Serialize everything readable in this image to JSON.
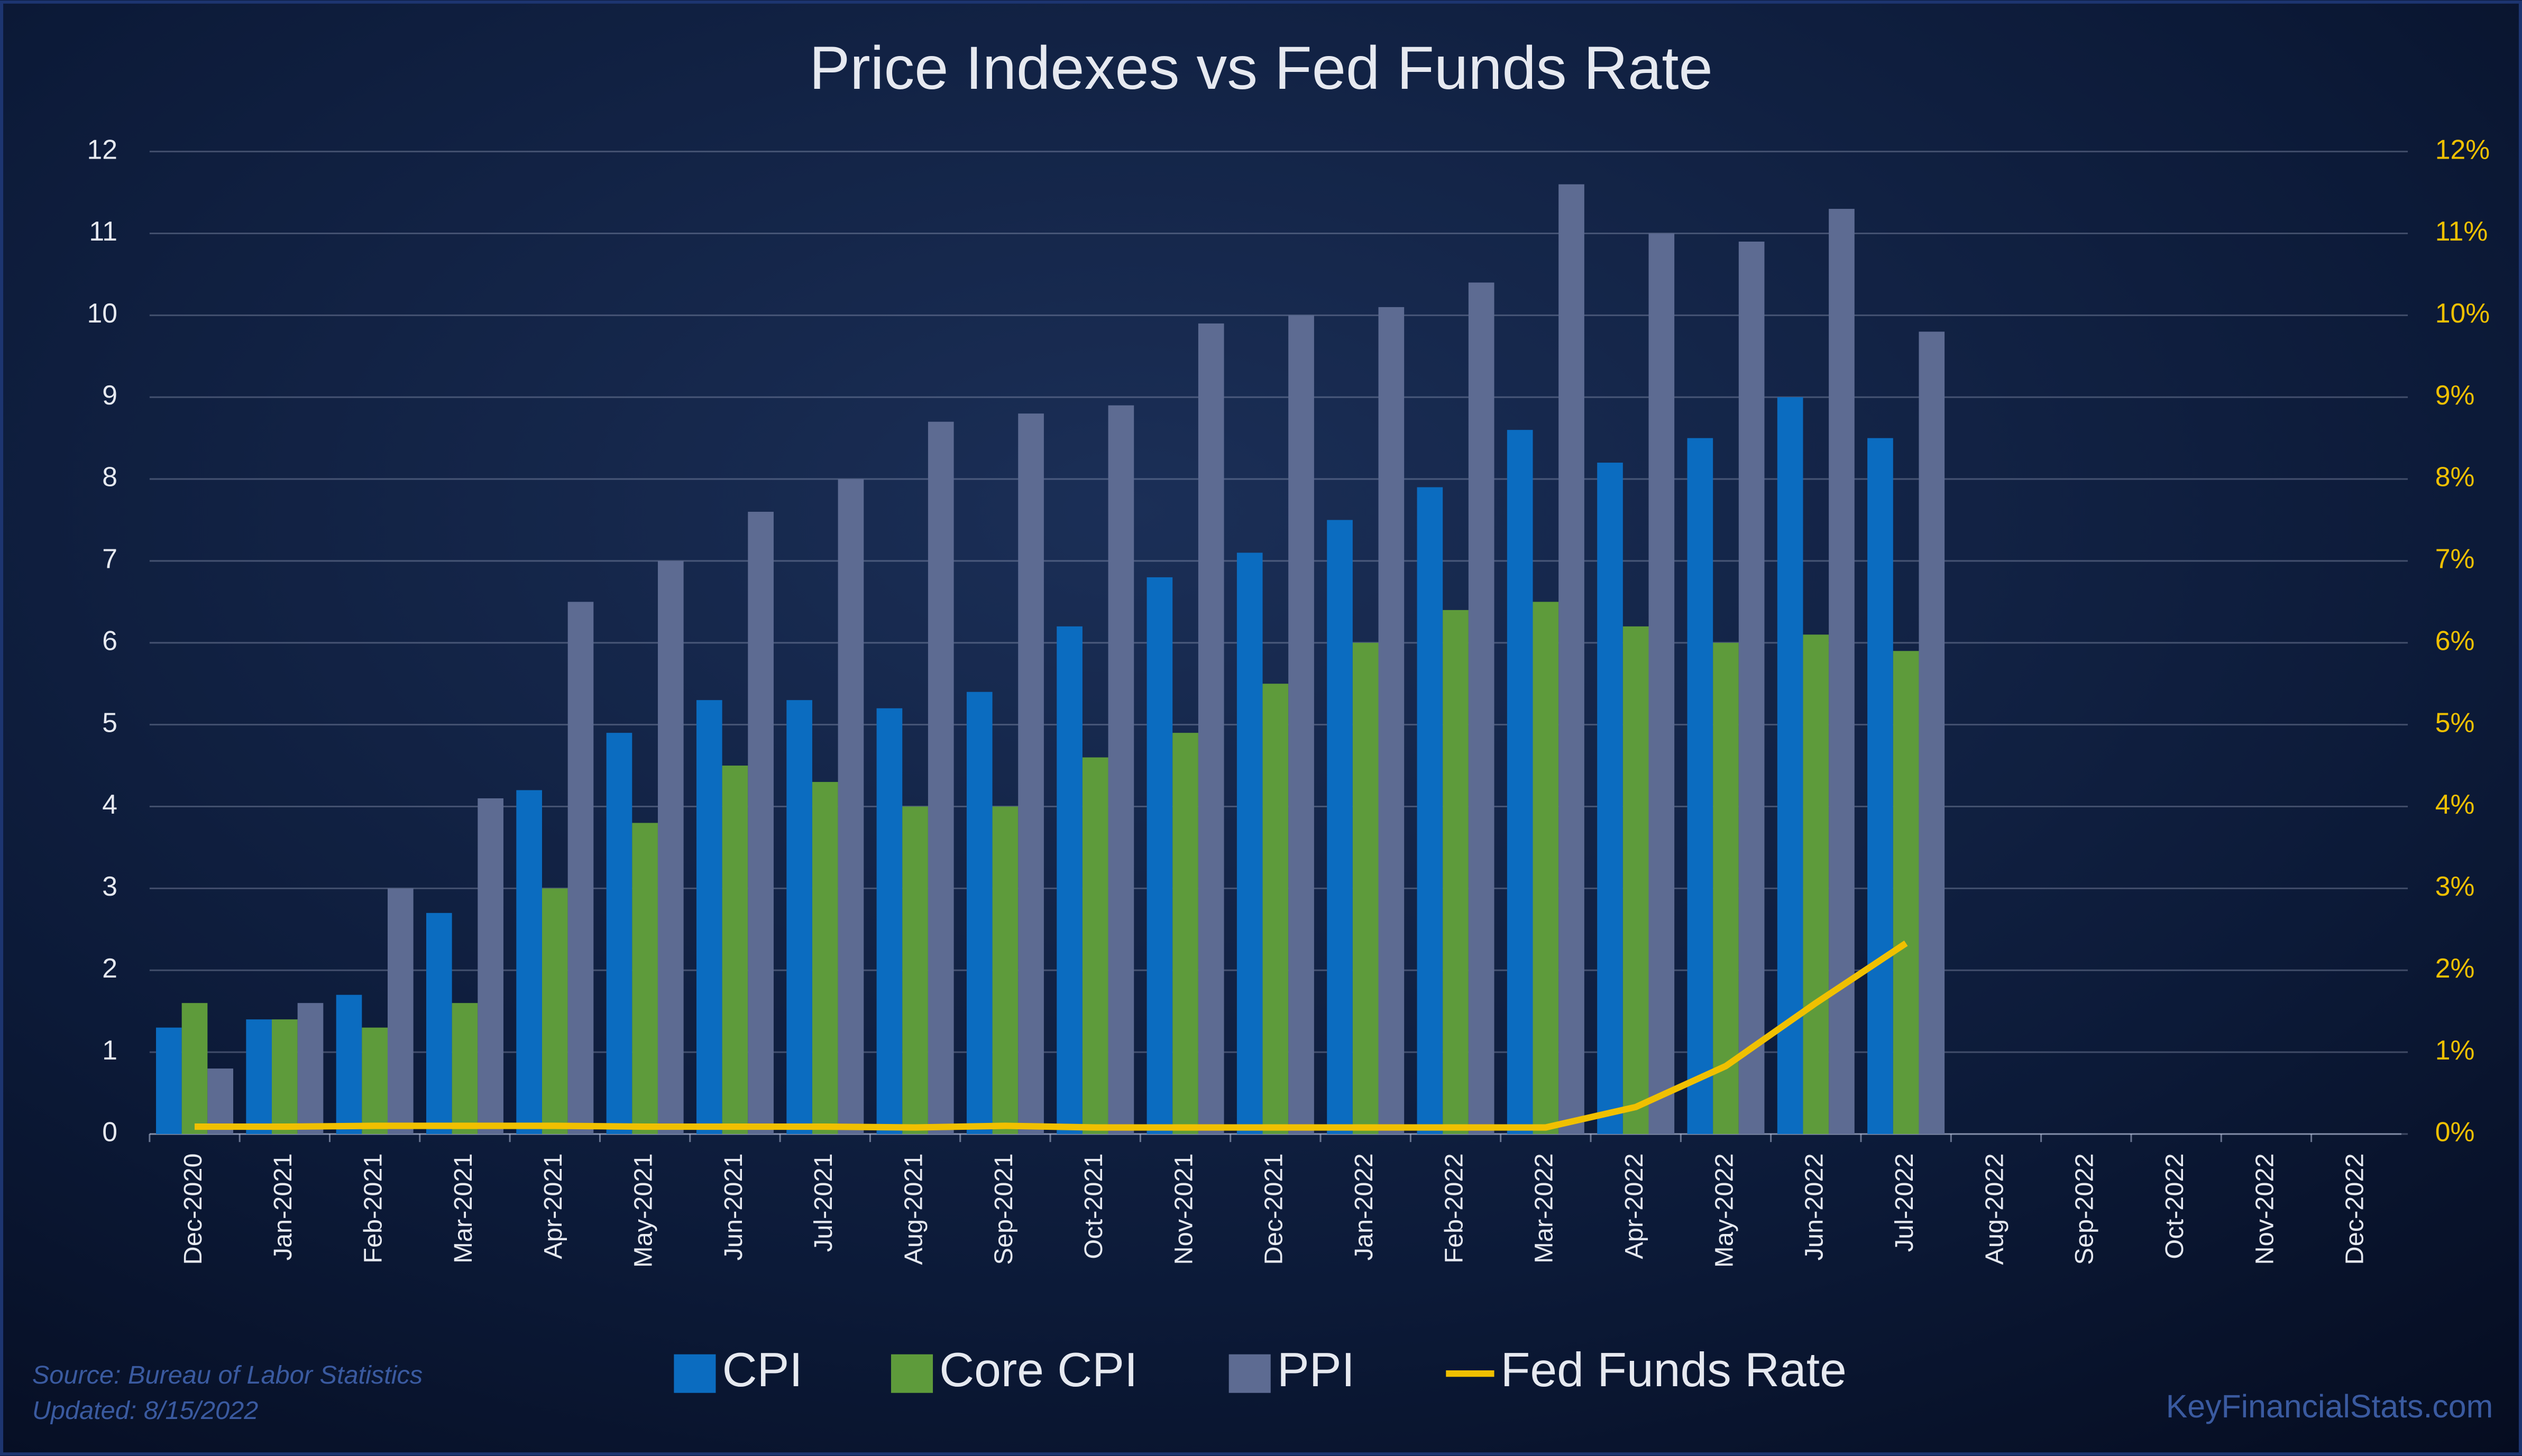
{
  "chart_data": {
    "type": "bar",
    "title": "Price Indexes vs Fed Funds Rate",
    "categories": [
      "Dec-2020",
      "Jan-2021",
      "Feb-2021",
      "Mar-2021",
      "Apr-2021",
      "May-2021",
      "Jun-2021",
      "Jul-2021",
      "Aug-2021",
      "Sep-2021",
      "Oct-2021",
      "Nov-2021",
      "Dec-2021",
      "Jan-2022",
      "Feb-2022",
      "Mar-2022",
      "Apr-2022",
      "May-2022",
      "Jun-2022",
      "Jul-2022",
      "Aug-2022",
      "Sep-2022",
      "Oct-2022",
      "Nov-2022",
      "Dec-2022"
    ],
    "series": [
      {
        "name": "CPI",
        "type": "bar",
        "color": "#0b6cc0",
        "values": [
          1.3,
          1.4,
          1.7,
          2.7,
          4.2,
          4.9,
          5.3,
          5.3,
          5.2,
          5.4,
          6.2,
          6.8,
          7.1,
          7.5,
          7.9,
          8.6,
          8.2,
          8.5,
          9.0,
          8.5,
          null,
          null,
          null,
          null,
          null
        ]
      },
      {
        "name": "Core CPI",
        "type": "bar",
        "color": "#5e9b3b",
        "values": [
          1.6,
          1.4,
          1.3,
          1.6,
          3.0,
          3.8,
          4.5,
          4.3,
          4.0,
          4.0,
          4.6,
          4.9,
          5.5,
          6.0,
          6.4,
          6.5,
          6.2,
          6.0,
          6.1,
          5.9,
          null,
          null,
          null,
          null,
          null
        ]
      },
      {
        "name": "PPI",
        "type": "bar",
        "color": "#5d6b92",
        "values": [
          0.8,
          1.6,
          3.0,
          4.1,
          6.5,
          7.0,
          7.6,
          8.0,
          8.7,
          8.8,
          8.9,
          9.9,
          10.0,
          10.1,
          10.4,
          11.6,
          11.0,
          10.9,
          11.3,
          9.8,
          null,
          null,
          null,
          null,
          null
        ]
      },
      {
        "name": "Fed Funds Rate",
        "type": "line",
        "axis": "y2",
        "color": "#f0c000",
        "values": [
          0.09,
          0.09,
          0.1,
          0.1,
          0.1,
          0.09,
          0.09,
          0.09,
          0.08,
          0.1,
          0.08,
          0.08,
          0.08,
          0.08,
          0.08,
          0.08,
          0.33,
          0.83,
          1.6,
          2.33,
          null,
          null,
          null,
          null,
          null
        ]
      }
    ],
    "ylim": [
      0,
      12
    ],
    "yticks": [
      0,
      1,
      2,
      3,
      4,
      5,
      6,
      7,
      8,
      9,
      10,
      11,
      12
    ],
    "y2lim": [
      0,
      12
    ],
    "y2ticks": [
      {
        "value": 0,
        "label": "0%"
      },
      {
        "value": 1,
        "label": "1%"
      },
      {
        "value": 2,
        "label": "2%"
      },
      {
        "value": 3,
        "label": "3%"
      },
      {
        "value": 4,
        "label": "4%"
      },
      {
        "value": 5,
        "label": "5%"
      },
      {
        "value": 6,
        "label": "6%"
      },
      {
        "value": 7,
        "label": "7%"
      },
      {
        "value": 8,
        "label": "8%"
      },
      {
        "value": 9,
        "label": "9%"
      },
      {
        "value": 10,
        "label": "10%"
      },
      {
        "value": 11,
        "label": "11%"
      },
      {
        "value": 12,
        "label": "12%"
      }
    ],
    "grid": true,
    "legend": "bottom",
    "notes": [
      "Source: Bureau of Labor Statistics",
      "Updated: 8/15/2022",
      "KeyFinancialStats.com"
    ]
  }
}
